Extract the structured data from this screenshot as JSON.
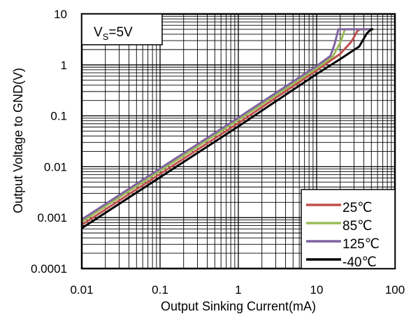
{
  "chart_data": {
    "type": "line",
    "title": "",
    "xlabel": "Output Sinking Current(mA)",
    "ylabel": "Output Voltage to GND(V)",
    "x_scale": "log",
    "y_scale": "log",
    "xlim": [
      0.01,
      100
    ],
    "ylim": [
      0.0001,
      10
    ],
    "x_ticks": [
      "0.01",
      "0.1",
      "1",
      "10",
      "100"
    ],
    "y_ticks": [
      "0.0001",
      "0.001",
      "0.01",
      "0.1",
      "1",
      "10"
    ],
    "grid": true,
    "annotation": {
      "prefix": "V",
      "subscript": "S",
      "suffix": "=5V"
    },
    "legend_position": "bottom-right",
    "series": [
      {
        "name": "25℃",
        "color": "#c0504d",
        "x": [
          0.01,
          0.1,
          1,
          10,
          20,
          28,
          33,
          36,
          50
        ],
        "y": [
          0.00072,
          0.0072,
          0.072,
          0.78,
          1.65,
          2.9,
          4.6,
          5.0,
          5.0
        ]
      },
      {
        "name": "85℃",
        "color": "#9bbb59",
        "x": [
          0.01,
          0.1,
          1,
          10,
          16,
          20,
          23,
          50
        ],
        "y": [
          0.00083,
          0.0083,
          0.083,
          0.86,
          1.45,
          2.7,
          5.0,
          5.0
        ]
      },
      {
        "name": "125℃",
        "color": "#8064a2",
        "x": [
          0.01,
          0.1,
          1,
          10,
          15,
          17,
          19,
          50
        ],
        "y": [
          0.00092,
          0.0092,
          0.092,
          0.95,
          1.5,
          2.6,
          5.0,
          5.0
        ]
      },
      {
        "name": "-40℃",
        "color": "#000000",
        "x": [
          0.01,
          0.1,
          1,
          10,
          20,
          35,
          44,
          50,
          53
        ],
        "y": [
          0.00062,
          0.0062,
          0.062,
          0.66,
          1.3,
          2.3,
          4.2,
          5.0,
          5.0
        ]
      }
    ]
  }
}
